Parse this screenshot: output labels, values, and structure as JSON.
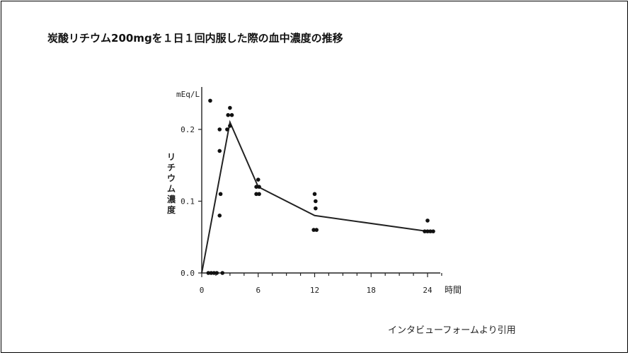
{
  "slide": {
    "title": "炭酸リチウム200mgを１日１回内服した際の血中濃度の推移",
    "source": "インタビューフォームより引用"
  },
  "chart_data": {
    "type": "scatter",
    "ylabel": "リチウム濃度",
    "y_unit": "mEq/L",
    "x_unit": "時間",
    "xlim": [
      0,
      27
    ],
    "ylim": [
      0,
      0.25
    ],
    "x_ticks": [
      0,
      6,
      12,
      18,
      24
    ],
    "y_ticks": [
      0.0,
      0.1,
      0.2
    ],
    "x_tick_labels": [
      "0",
      "6",
      "12",
      "18",
      "24"
    ],
    "y_tick_labels": [
      "0.0",
      "0.1",
      "0.2"
    ],
    "mean_line": {
      "x": [
        0,
        3,
        6,
        12,
        24
      ],
      "y": [
        0.0,
        0.21,
        0.12,
        0.08,
        0.058
      ]
    },
    "points": [
      {
        "x": 0.9,
        "y": 0.24
      },
      {
        "x": 0.7,
        "y": 0.0
      },
      {
        "x": 1.0,
        "y": 0.0
      },
      {
        "x": 1.3,
        "y": 0.0
      },
      {
        "x": 1.6,
        "y": 0.0
      },
      {
        "x": 1.9,
        "y": 0.08
      },
      {
        "x": 1.9,
        "y": 0.17
      },
      {
        "x": 1.9,
        "y": 0.2
      },
      {
        "x": 2.0,
        "y": 0.11
      },
      {
        "x": 2.2,
        "y": 0.0
      },
      {
        "x": 2.7,
        "y": 0.2
      },
      {
        "x": 2.8,
        "y": 0.22
      },
      {
        "x": 3.0,
        "y": 0.23
      },
      {
        "x": 3.0,
        "y": 0.205
      },
      {
        "x": 3.2,
        "y": 0.22
      },
      {
        "x": 5.8,
        "y": 0.11
      },
      {
        "x": 5.8,
        "y": 0.12
      },
      {
        "x": 6.0,
        "y": 0.13
      },
      {
        "x": 6.1,
        "y": 0.12
      },
      {
        "x": 6.1,
        "y": 0.11
      },
      {
        "x": 11.9,
        "y": 0.06
      },
      {
        "x": 12.0,
        "y": 0.11
      },
      {
        "x": 12.1,
        "y": 0.1
      },
      {
        "x": 12.1,
        "y": 0.09
      },
      {
        "x": 12.2,
        "y": 0.06
      },
      {
        "x": 23.7,
        "y": 0.058
      },
      {
        "x": 24.0,
        "y": 0.073
      },
      {
        "x": 24.0,
        "y": 0.058
      },
      {
        "x": 24.3,
        "y": 0.058
      },
      {
        "x": 24.6,
        "y": 0.058
      }
    ]
  }
}
